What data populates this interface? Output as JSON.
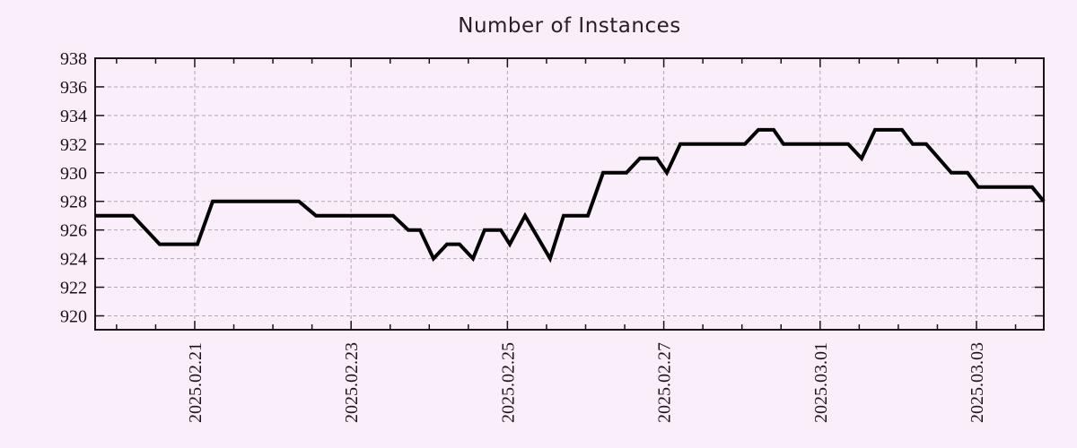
{
  "chart_data": {
    "type": "line",
    "title": "Number of Instances",
    "xlabel": "",
    "ylabel": "",
    "grid": true,
    "legend": "none",
    "x_axis": {
      "epoch": "days since 2025-02-21 00:00",
      "range_days": [
        -1.274,
        10.861
      ],
      "major_tick_days": [
        0,
        2,
        4,
        6,
        8,
        10
      ],
      "tick_labels": [
        "2025.02.21",
        "2025.02.23",
        "2025.02.25",
        "2025.02.27",
        "2025.03.01",
        "2025.03.03"
      ],
      "minor_tick_interval_days": 0.5
    },
    "y_axis": {
      "range": [
        919.03,
        938
      ],
      "ticks": [
        920,
        922,
        924,
        926,
        928,
        930,
        932,
        934,
        936,
        938
      ],
      "tick_labels": [
        "920",
        "922",
        "924",
        "926",
        "928",
        "930",
        "932",
        "934",
        "936",
        "938"
      ]
    },
    "series": [
      {
        "name": "instances",
        "points": [
          [
            -1.274,
            927
          ],
          [
            -0.792,
            927
          ],
          [
            -0.448,
            925
          ],
          [
            0.034,
            925
          ],
          [
            0.23,
            928
          ],
          [
            1.332,
            928
          ],
          [
            1.55,
            927
          ],
          [
            2.537,
            927
          ],
          [
            2.732,
            926
          ],
          [
            2.882,
            926
          ],
          [
            3.054,
            924
          ],
          [
            3.226,
            925
          ],
          [
            3.387,
            925
          ],
          [
            3.559,
            924
          ],
          [
            3.708,
            926
          ],
          [
            3.915,
            926
          ],
          [
            4.03,
            925
          ],
          [
            4.225,
            927
          ],
          [
            4.546,
            924
          ],
          [
            4.719,
            927
          ],
          [
            5.029,
            927
          ],
          [
            5.224,
            930
          ],
          [
            5.522,
            930
          ],
          [
            5.695,
            931
          ],
          [
            5.913,
            931
          ],
          [
            6.039,
            930
          ],
          [
            6.211,
            932
          ],
          [
            7.038,
            932
          ],
          [
            7.21,
            933
          ],
          [
            7.405,
            933
          ],
          [
            7.532,
            932
          ],
          [
            8.358,
            932
          ],
          [
            8.53,
            931
          ],
          [
            8.703,
            933
          ],
          [
            9.047,
            933
          ],
          [
            9.185,
            932
          ],
          [
            9.357,
            932
          ],
          [
            9.679,
            930
          ],
          [
            9.885,
            930
          ],
          [
            10.023,
            929
          ],
          [
            10.712,
            929
          ],
          [
            10.861,
            928
          ]
        ]
      }
    ],
    "colors": {
      "background": "#fbeefb",
      "line": "#000000",
      "grid": "#b2a6b2",
      "axis": "#1a141a",
      "text": "#1a141a",
      "title_text": "#262026"
    }
  }
}
